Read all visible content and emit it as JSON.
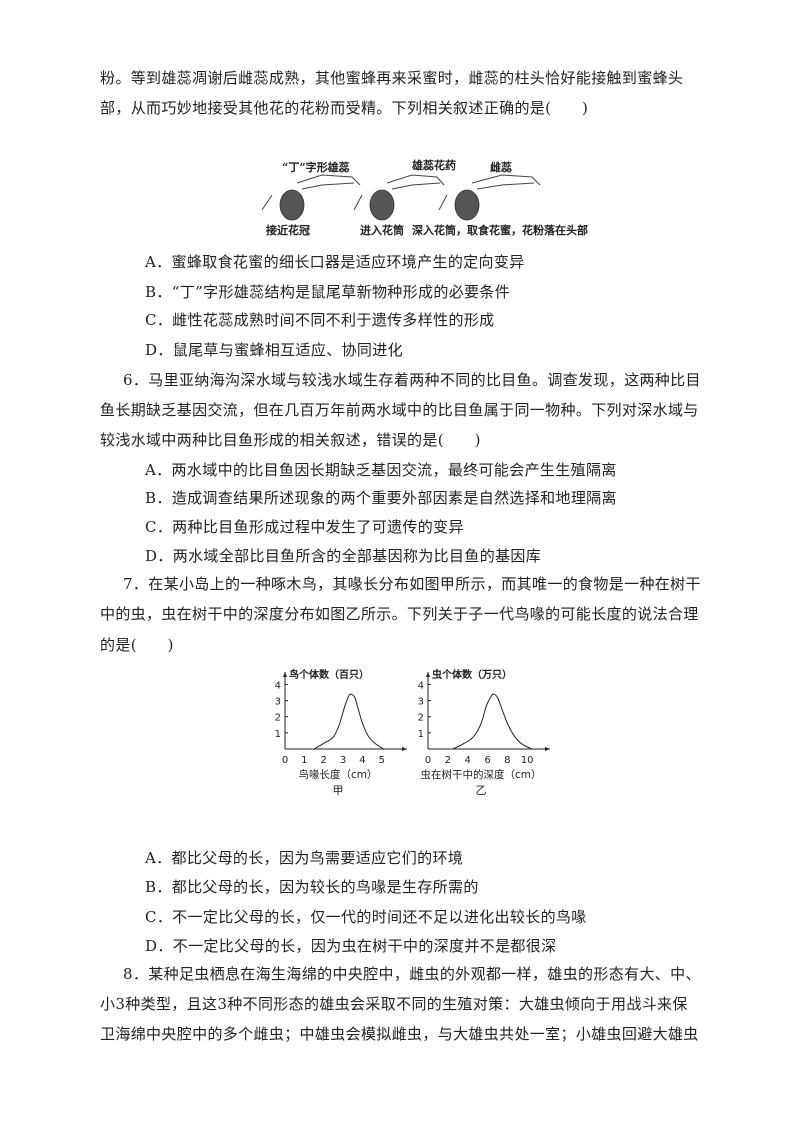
{
  "q5": {
    "lines": [
      "粉。等到雄蕊凋谢后雌蕊成熟，其他蜜蜂再来采蜜时，雌蕊的柱头恰好能接触到蜜蜂头",
      "部，从而巧妙地接受其他花的花粉而受精。下列相关叙述正确的是(　　)"
    ],
    "figure": {
      "top_labels": [
        "“丁”字形雄蕊",
        "雄蕊花药",
        "雌蕊"
      ],
      "bottom_labels": [
        "接近花冠",
        "进入花筒",
        "深入花筒，取食花蜜，花粉落在头部"
      ]
    },
    "options": [
      "A．蜜蜂取食花蜜的细长口器是适应环境产生的定向变异",
      "B．“丁”字形雄蕊结构是鼠尾草新物种形成的必要条件",
      "C．雌性花蕊成熟时间不同不利于遗传多样性的形成",
      "D．鼠尾草与蜜蜂相互适应、协同进化"
    ]
  },
  "q6": {
    "lines": [
      "6．马里亚纳海沟深水域与较浅水域生存着两种不同的比目鱼。调查发现，这两种比目",
      "鱼长期缺乏基因交流，但在几百万年前两水域中的比目鱼属于同一物种。下列对深水域与",
      "较浅水域中两种比目鱼形成的相关叙述，错误的是(　　)"
    ],
    "options": [
      "A．两水域中的比目鱼因长期缺乏基因交流，最终可能会产生生殖隔离",
      "B．造成调查结果所述现象的两个重要外部因素是自然选择和地理隔离",
      "C．两种比目鱼形成过程中发生了可遗传的变异",
      "D．两水域全部比目鱼所含的全部基因称为比目鱼的基因库"
    ]
  },
  "q7": {
    "lines": [
      "7．在某小岛上的一种啄木鸟，其喙长分布如图甲所示，而其唯一的食物是一种在树干",
      "中的虫，虫在树干中的深度分布如图乙所示。下列关于子一代鸟喙的可能长度的说法合理",
      "的是(　　)"
    ],
    "options": [
      "A．都比父母的长，因为鸟需要适应它们的环境",
      "B．都比父母的长，因为较长的鸟喙是生存所需的",
      "C．不一定比父母的长，仅一代的时间还不足以进化出较长的鸟喙",
      "D．不一定比父母的长，因为虫在树干中的深度并不是都很深"
    ]
  },
  "q8": {
    "lines": [
      "8．某种足虫栖息在海生海绵的中央腔中，雌虫的外观都一样，雄虫的形态有大、中、",
      "小3种类型，且这3种不同形态的雄虫会采取不同的生殖对策：大雄虫倾向于用战斗来保",
      "卫海绵中央腔中的多个雌虫；中雄虫会模拟雌虫，与大雄虫共处一室；小雄虫回避大雄虫"
    ]
  },
  "chart_data": [
    {
      "type": "line",
      "title": "甲",
      "ylabel": "鸟个体数（百只）",
      "xlabel": "鸟喙长度（cm）",
      "xticks": [
        "0",
        "1",
        "2",
        "3",
        "4",
        "5"
      ],
      "yticks": [
        "1",
        "2",
        "3",
        "4"
      ],
      "xlim": [
        0,
        6.3
      ],
      "ylim": [
        0,
        4.4
      ],
      "grid": false,
      "x": [
        1.5,
        2.0,
        2.5,
        2.8,
        3.1,
        3.3,
        3.4,
        3.6,
        3.8,
        4.0,
        4.3,
        4.7,
        5.1
      ],
      "y": [
        0,
        0.35,
        0.75,
        1.5,
        2.7,
        3.3,
        3.4,
        3.2,
        2.4,
        1.6,
        0.8,
        0.3,
        0
      ]
    },
    {
      "type": "line",
      "title": "乙",
      "ylabel": "虫个体数（万只）",
      "xlabel": "虫在树干中的深度（cm）",
      "xticks": [
        "0",
        "2",
        "4",
        "6",
        "8",
        "10"
      ],
      "yticks": [
        "1",
        "2",
        "3",
        "4"
      ],
      "xlim": [
        0,
        12.3
      ],
      "ylim": [
        0,
        4.4
      ],
      "grid": false,
      "x": [
        2.5,
        3.5,
        4.5,
        5.3,
        5.9,
        6.4,
        6.6,
        7.0,
        7.5,
        8.0,
        8.7,
        9.5,
        10.5
      ],
      "y": [
        0,
        0.3,
        0.7,
        1.5,
        2.7,
        3.3,
        3.4,
        3.2,
        2.4,
        1.6,
        0.8,
        0.3,
        0
      ]
    }
  ]
}
